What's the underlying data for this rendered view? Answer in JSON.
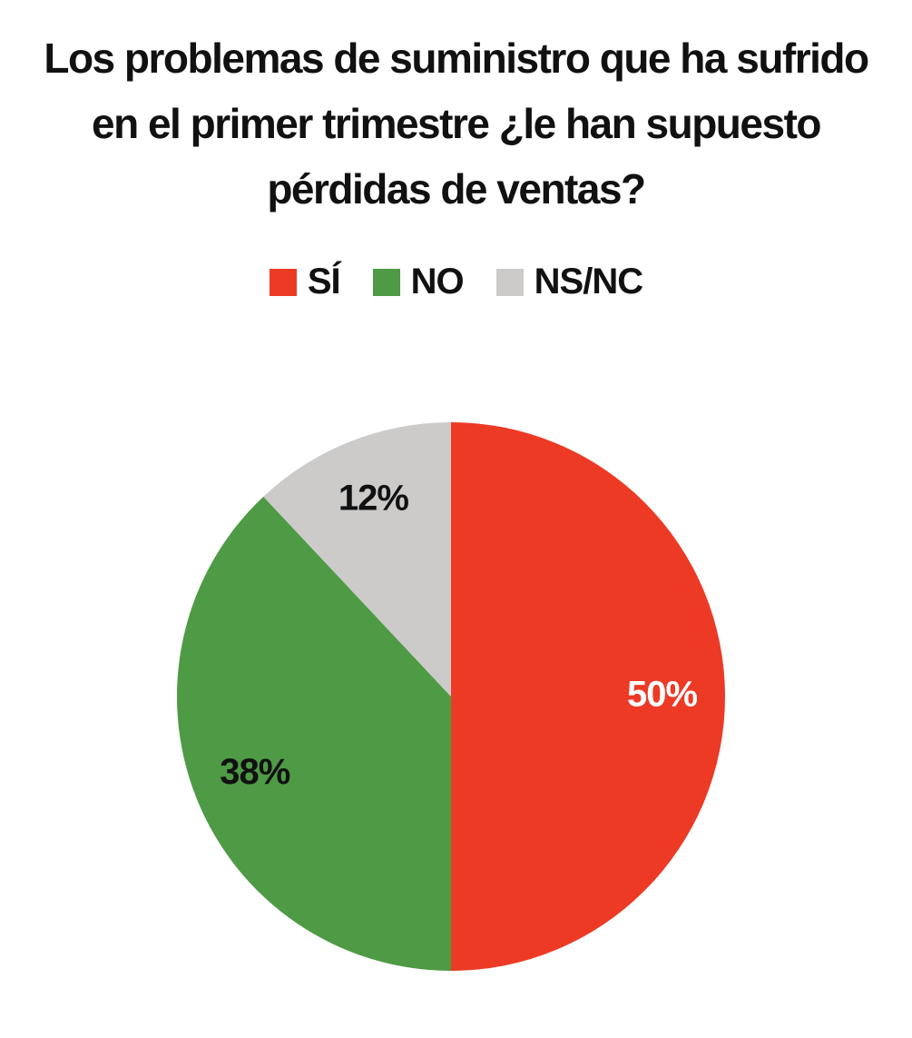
{
  "chart_data": {
    "type": "pie",
    "title": "Los problemas de suministro que ha sufrido en el primer trimestre ¿le han supuesto pérdidas de ventas?",
    "categories": [
      "SÍ",
      "NO",
      "NS/NC"
    ],
    "values": [
      50,
      38,
      12
    ],
    "value_labels": [
      "50%",
      "38%",
      "12%"
    ],
    "colors": [
      "#ec3a25",
      "#4e9a45",
      "#cccbca"
    ],
    "label_colors": [
      "#ffffff",
      "#111111",
      "#111111"
    ]
  }
}
